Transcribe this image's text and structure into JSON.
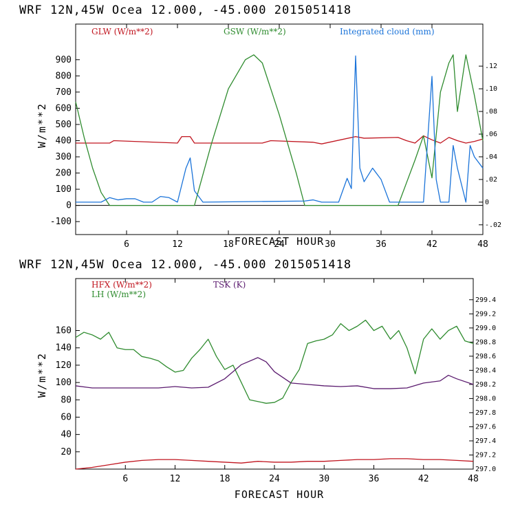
{
  "header_title": "WRF  12N,45W Ocea  12.000, -45.000  2015051418",
  "chart_data": [
    {
      "type": "line",
      "title": "WRF  12N,45W Ocea  12.000, -45.000  2015051418",
      "xlabel": "FORECAST HOUR",
      "ylabel": "W/m**2",
      "xlim": [
        0,
        48
      ],
      "ylim": [
        -180,
        1120
      ],
      "yticks": [
        -100,
        0,
        100,
        200,
        300,
        400,
        500,
        600,
        700,
        800,
        900
      ],
      "xticks": [
        6,
        12,
        18,
        24,
        30,
        36,
        42,
        48
      ],
      "zero_line": true,
      "right_axis": {
        "ylim": [
          -0.0286,
          0.1571
        ],
        "ticks": [
          -0.02,
          0,
          0.02,
          0.04,
          0.06,
          0.08,
          0.1,
          0.12
        ],
        "labels": [
          "-.02",
          "0",
          ".02",
          ".04",
          ".06",
          ".08",
          ".10",
          ".12"
        ]
      },
      "series": [
        {
          "name": "GLW (W/m**2)",
          "color": "#c0141e",
          "axis": "left",
          "x": [
            0,
            4,
            4.5,
            12,
            12.5,
            13.5,
            14,
            22,
            23,
            28,
            29,
            33,
            34,
            38,
            39,
            40,
            41,
            42,
            43,
            44,
            45,
            46,
            47,
            48
          ],
          "y": [
            385,
            385,
            400,
            385,
            425,
            425,
            385,
            385,
            400,
            390,
            380,
            425,
            415,
            420,
            400,
            385,
            430,
            405,
            385,
            420,
            400,
            385,
            395,
            410
          ]
        },
        {
          "name": "GSW (W/m**2)",
          "color": "#2e8b2e",
          "axis": "left",
          "x": [
            0,
            1,
            2,
            3,
            4,
            14,
            16,
            18,
            20,
            21,
            22,
            24,
            26,
            27,
            38,
            39,
            40,
            41,
            42,
            43,
            44,
            44.5,
            45,
            46,
            47,
            48
          ],
          "y": [
            640,
            420,
            230,
            80,
            0,
            0,
            380,
            720,
            900,
            930,
            880,
            560,
            200,
            0,
            0,
            140,
            280,
            430,
            170,
            700,
            880,
            930,
            580,
            930,
            680,
            400
          ]
        },
        {
          "name": "Integrated cloud (mm)",
          "color": "#1a73d9",
          "axis": "right",
          "x": [
            0,
            3,
            4,
            5,
            6,
            7,
            8,
            9,
            10,
            11,
            12,
            13,
            13.5,
            14,
            15,
            27,
            28,
            29,
            31,
            32,
            32.5,
            33,
            33.5,
            34,
            35,
            36,
            37,
            38,
            39,
            41,
            42,
            42.5,
            43,
            44,
            44.5,
            45,
            46,
            46.5,
            47,
            48
          ],
          "y": [
            0,
            0,
            0.004,
            0.002,
            0.003,
            0.003,
            0,
            0,
            0.005,
            0.004,
            0,
            0.03,
            0.039,
            0.01,
            0,
            0.001,
            0.002,
            0,
            0,
            0.021,
            0.012,
            0.129,
            0.03,
            0.018,
            0.03,
            0.02,
            0,
            0,
            0,
            0,
            0.111,
            0.02,
            0,
            0,
            0.05,
            0.03,
            0,
            0.05,
            0.04,
            0.03
          ]
        }
      ]
    },
    {
      "type": "line",
      "title": "WRF  12N,45W Ocea  12.000, -45.000  2015051418",
      "xlabel": "FORECAST HOUR",
      "ylabel": "W/m**2",
      "xlim": [
        0,
        48
      ],
      "ylim": [
        0,
        220
      ],
      "yticks": [
        20,
        40,
        60,
        80,
        100,
        120,
        140,
        160
      ],
      "xticks": [
        6,
        12,
        18,
        24,
        30,
        36,
        42,
        48
      ],
      "zero_line": false,
      "right_axis": {
        "ylim": [
          297.0,
          299.7
        ],
        "ticks": [
          297.0,
          297.2,
          297.4,
          297.6,
          297.8,
          298.0,
          298.2,
          298.4,
          298.6,
          298.8,
          299.0,
          299.2,
          299.4
        ],
        "labels": [
          "297.0",
          "297.2",
          "297.4",
          "297.6",
          "297.8",
          "298.0",
          "298.2",
          "298.4",
          "298.6",
          "298.8",
          "299.0",
          "299.2",
          "299.4"
        ]
      },
      "series": [
        {
          "name": "HFX (W/m**2)",
          "color": "#c0141e",
          "axis": "left",
          "x": [
            0,
            2,
            4,
            6,
            8,
            10,
            12,
            14,
            16,
            18,
            20,
            22,
            24,
            26,
            28,
            30,
            32,
            34,
            36,
            38,
            40,
            42,
            44,
            46,
            48
          ],
          "y": [
            0,
            2,
            5,
            8,
            10,
            11,
            11,
            10,
            9,
            8,
            7,
            9,
            8,
            8,
            9,
            9,
            10,
            11,
            11,
            12,
            12,
            11,
            11,
            10,
            9
          ]
        },
        {
          "name": "LH (W/m**2)",
          "color": "#2e8b2e",
          "axis": "left",
          "x": [
            0,
            1,
            2,
            3,
            4,
            5,
            6,
            7,
            8,
            9,
            10,
            11,
            12,
            13,
            14,
            15,
            16,
            17,
            18,
            19,
            20,
            21,
            22,
            23,
            24,
            25,
            26,
            27,
            28,
            29,
            30,
            31,
            32,
            33,
            34,
            35,
            36,
            37,
            38,
            39,
            40,
            41,
            42,
            43,
            44,
            45,
            46,
            47,
            48
          ],
          "y": [
            152,
            158,
            155,
            150,
            158,
            140,
            138,
            138,
            130,
            128,
            125,
            118,
            112,
            114,
            128,
            138,
            150,
            130,
            115,
            120,
            100,
            80,
            78,
            76,
            77,
            82,
            100,
            115,
            145,
            148,
            150,
            155,
            168,
            160,
            165,
            172,
            160,
            165,
            150,
            160,
            140,
            110,
            150,
            162,
            150,
            160,
            165,
            148,
            145
          ]
        },
        {
          "name": "TSK (K)",
          "color": "#5a1a6e",
          "axis": "right",
          "x": [
            0,
            2,
            4,
            6,
            8,
            10,
            12,
            14,
            16,
            18,
            20,
            22,
            23,
            24,
            26,
            28,
            30,
            32,
            34,
            36,
            38,
            40,
            42,
            44,
            45,
            46,
            48
          ],
          "y": [
            298.18,
            298.15,
            298.15,
            298.15,
            298.15,
            298.15,
            298.17,
            298.15,
            298.16,
            298.28,
            298.48,
            298.58,
            298.52,
            298.38,
            298.22,
            298.2,
            298.18,
            298.17,
            298.18,
            298.14,
            298.14,
            298.15,
            298.22,
            298.25,
            298.33,
            298.28,
            298.2
          ]
        }
      ]
    }
  ]
}
